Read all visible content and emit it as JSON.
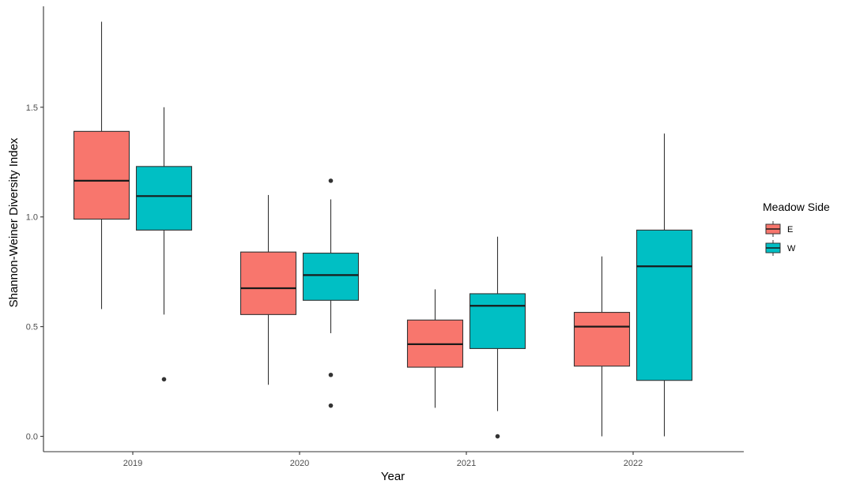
{
  "chart_data": {
    "type": "boxplot",
    "title": "",
    "xlabel": "Year",
    "ylabel": "Shannon-Weiner Diversity Index",
    "categories": [
      "2019",
      "2020",
      "2021",
      "2022"
    ],
    "ylim": [
      -0.07,
      1.96
    ],
    "yticks": [
      0.0,
      0.5,
      1.0,
      1.5
    ],
    "ytick_labels": [
      "0.0",
      "0.5",
      "1.0",
      "1.5"
    ],
    "grid": false,
    "legend": {
      "title": "Meadow Side",
      "position": "right"
    },
    "series": [
      {
        "name": "E",
        "color": "#F8766D",
        "boxes": [
          {
            "category": "2019",
            "whisker_low": 0.58,
            "q1": 0.99,
            "median": 1.165,
            "q3": 1.39,
            "whisker_high": 1.89,
            "outliers": []
          },
          {
            "category": "2020",
            "whisker_low": 0.235,
            "q1": 0.555,
            "median": 0.675,
            "q3": 0.84,
            "whisker_high": 1.1,
            "outliers": []
          },
          {
            "category": "2021",
            "whisker_low": 0.13,
            "q1": 0.315,
            "median": 0.42,
            "q3": 0.53,
            "whisker_high": 0.67,
            "outliers": []
          },
          {
            "category": "2022",
            "whisker_low": 0.0,
            "q1": 0.32,
            "median": 0.5,
            "q3": 0.565,
            "whisker_high": 0.82,
            "outliers": []
          }
        ]
      },
      {
        "name": "W",
        "color": "#00BFC4",
        "boxes": [
          {
            "category": "2019",
            "whisker_low": 0.555,
            "q1": 0.94,
            "median": 1.095,
            "q3": 1.23,
            "whisker_high": 1.5,
            "outliers": [
              0.26
            ]
          },
          {
            "category": "2020",
            "whisker_low": 0.47,
            "q1": 0.62,
            "median": 0.735,
            "q3": 0.835,
            "whisker_high": 1.08,
            "outliers": [
              1.165,
              0.28,
              0.14
            ]
          },
          {
            "category": "2021",
            "whisker_low": 0.115,
            "q1": 0.4,
            "median": 0.595,
            "q3": 0.65,
            "whisker_high": 0.91,
            "outliers": [
              0.0
            ]
          },
          {
            "category": "2022",
            "whisker_low": 0.0,
            "q1": 0.255,
            "median": 0.775,
            "q3": 0.94,
            "whisker_high": 1.38,
            "outliers": []
          }
        ]
      }
    ]
  }
}
